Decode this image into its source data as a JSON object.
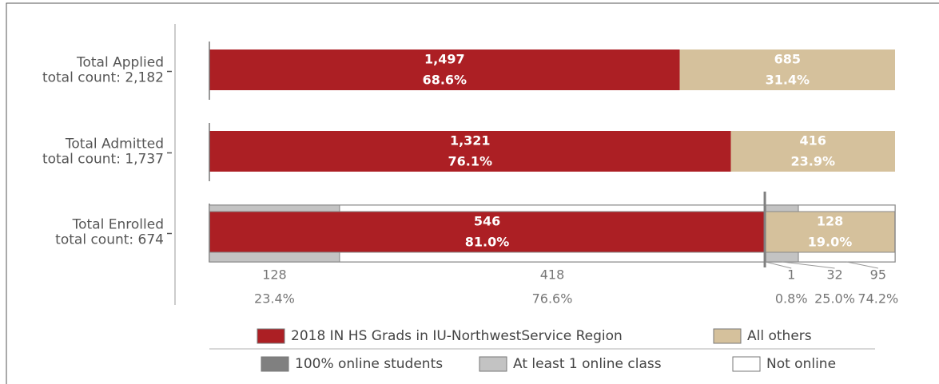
{
  "chart_data": {
    "type": "stacked_bar_h",
    "categories": [
      "Total Applied",
      "Total Admitted",
      "Total Enrolled"
    ],
    "category_subtitles": [
      "total count: 2,182",
      "total count: 1,737",
      "total count: 674"
    ],
    "series": [
      {
        "name": "2018 IN HS Grads in IU-NorthwestService Region",
        "color": "#ac1f24",
        "values": [
          1497,
          1321,
          546
        ],
        "value_labels": [
          "1,497",
          "1,321",
          "546"
        ],
        "percents": [
          68.6,
          76.1,
          81.0
        ],
        "percent_labels": [
          "68.6%",
          "76.1%",
          "81.0%"
        ]
      },
      {
        "name": "All others",
        "color": "#d5c19c",
        "values": [
          685,
          416,
          128
        ],
        "value_labels": [
          "685",
          "416",
          "128"
        ],
        "percents": [
          31.4,
          23.9,
          19.0
        ],
        "percent_labels": [
          "31.4%",
          "23.9%",
          "19.0%"
        ]
      }
    ],
    "online_series": [
      {
        "name": "100% online students",
        "color": "#808080",
        "values": [
          null,
          1
        ],
        "percents": [
          null,
          0.8
        ],
        "percent_labels": [
          null,
          "0.8%"
        ]
      },
      {
        "name": "At least 1 online class",
        "color": "#c3c3c3",
        "values": [
          128,
          32
        ],
        "percents": [
          23.4,
          25.0
        ],
        "percent_labels": [
          "23.4%",
          "25.0%"
        ]
      },
      {
        "name": "Not online",
        "color": "#ffffff",
        "values": [
          418,
          95
        ],
        "percents": [
          76.6,
          74.2
        ],
        "percent_labels": [
          "76.6%",
          "74.2%"
        ]
      }
    ]
  }
}
